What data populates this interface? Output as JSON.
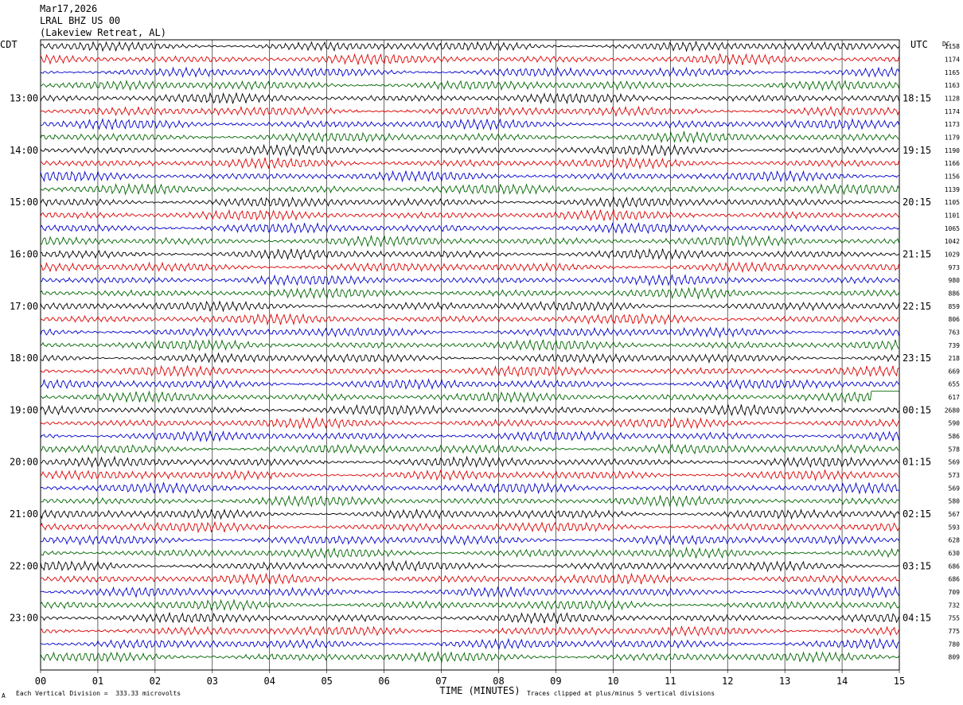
{
  "header": {
    "date": "Mar17,2026",
    "station": "LRAL BHZ US 00",
    "location": "(Lakeview Retreat, AL)"
  },
  "labels": {
    "left_tz": "CDT",
    "right_tz": "UTC",
    "dc_label": "DC"
  },
  "footer": {
    "scale_note": "Each Vertical Division =  333.33 microvolts",
    "clip_note": "Traces clipped at plus/minus 5 vertical divisions",
    "scale_mark": "A"
  },
  "chart_data": {
    "type": "line",
    "title": "",
    "xlabel": "TIME (MINUTES)",
    "ylabel": "",
    "xlim": [
      0,
      15
    ],
    "x_ticks": [
      "00",
      "01",
      "02",
      "03",
      "04",
      "05",
      "06",
      "07",
      "08",
      "09",
      "10",
      "11",
      "12",
      "13",
      "14",
      "15"
    ],
    "trace_count": 48,
    "trace_colors": [
      "#000000",
      "#dd0000",
      "#0000cc",
      "#006600"
    ],
    "trace_interval_minutes": 15,
    "left_hour_labels": [
      "13:00",
      "14:00",
      "15:00",
      "16:00",
      "17:00",
      "18:00",
      "19:00",
      "20:00",
      "21:00",
      "22:00",
      "23:00"
    ],
    "right_hour_labels": [
      "18:15",
      "19:15",
      "20:15",
      "21:15",
      "22:15",
      "23:15",
      "00:15",
      "01:15",
      "02:15",
      "03:15",
      "04:15"
    ],
    "dc_offsets": [
      "1158",
      "1174",
      "1165",
      "1163",
      "1128",
      "1174",
      "1173",
      "1179",
      "1190",
      "1166",
      "1156",
      "1139",
      "1105",
      "1101",
      "1065",
      "1042",
      "1029",
      "973",
      "980",
      "886",
      "859",
      "806",
      "763",
      "739",
      "218",
      "669",
      "655",
      "617",
      "2680",
      "590",
      "586",
      "578",
      "569",
      "573",
      "569",
      "580",
      "567",
      "593",
      "628",
      "630",
      "686",
      "686",
      "709",
      "732",
      "755",
      "775",
      "780",
      "809"
    ],
    "clipped_traces": [
      {
        "trace_index": 27,
        "from_minute": 14.5
      }
    ],
    "grid": true
  }
}
